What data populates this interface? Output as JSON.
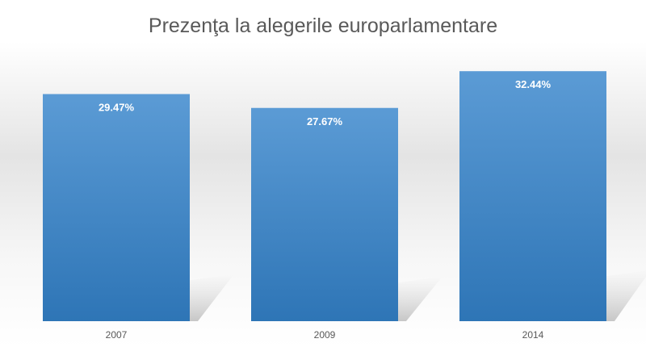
{
  "chart_data": {
    "type": "bar",
    "title": "Prezenţa la alegerile europarlamentare",
    "categories": [
      "2007",
      "2009",
      "2014"
    ],
    "values": [
      29.47,
      27.67,
      32.44
    ],
    "value_labels": [
      "29.47%",
      "27.67%",
      "32.44%"
    ],
    "xlabel": "",
    "ylabel": "",
    "grid": false,
    "legend": "none",
    "colors": {
      "bar_top": "#5b9bd5",
      "bar_bottom": "#2e75b6",
      "title": "#595959",
      "tick": "#595959",
      "label": "#ffffff"
    }
  }
}
